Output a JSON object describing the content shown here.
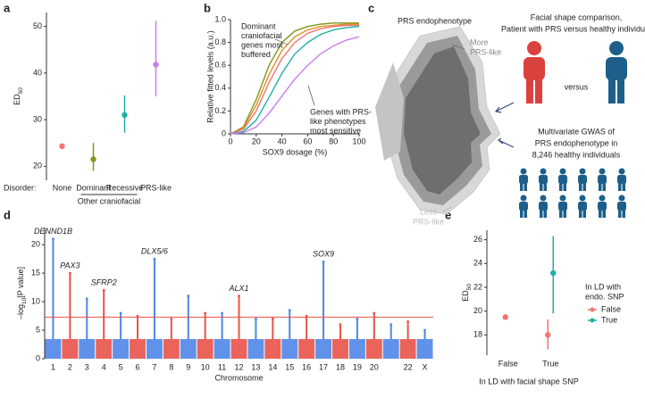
{
  "panel_labels": [
    "a",
    "b",
    "c",
    "d",
    "e"
  ],
  "chart_data": [
    {
      "type": "pointrange",
      "ylabel": "ED",
      "ylabel_subscript": "50",
      "categories": [
        "None",
        "Dominant",
        "Recessive",
        "PRS-like"
      ],
      "values": [
        24.3,
        21.5,
        31,
        41.8
      ],
      "lower": [
        24,
        19,
        27.2,
        35
      ],
      "upper": [
        24.6,
        25,
        35.2,
        51.2
      ],
      "colors": [
        "#f07470",
        "#7d9a1c",
        "#1eb0a6",
        "#c77cf0"
      ],
      "row_label": "Disorder:",
      "group_label": "Other craniofacial",
      "ylim": [
        17,
        53
      ],
      "yticks": [
        20,
        30,
        40,
        50
      ]
    },
    {
      "type": "line",
      "xlabel": "SOX9 dosage (%)",
      "ylabel": "Relative fitted levels (a.u.)",
      "x": [
        0,
        10,
        20,
        30,
        40,
        50,
        60,
        70,
        80,
        90,
        100
      ],
      "series": [
        {
          "color": "#7d9a1c",
          "values": [
            0,
            0.06,
            0.3,
            0.6,
            0.8,
            0.9,
            0.94,
            0.96,
            0.97,
            0.97,
            0.97
          ]
        },
        {
          "color": "#e0902a",
          "values": [
            0,
            0.05,
            0.25,
            0.52,
            0.73,
            0.85,
            0.91,
            0.94,
            0.95,
            0.96,
            0.96
          ]
        },
        {
          "color": "#f07470",
          "values": [
            0,
            0.04,
            0.2,
            0.45,
            0.66,
            0.8,
            0.88,
            0.92,
            0.94,
            0.95,
            0.95
          ]
        },
        {
          "color": "#1eb0a6",
          "values": [
            0,
            0.02,
            0.12,
            0.32,
            0.53,
            0.7,
            0.8,
            0.87,
            0.91,
            0.93,
            0.94
          ]
        },
        {
          "color": "#c77cf0",
          "values": [
            0,
            0.01,
            0.06,
            0.18,
            0.33,
            0.48,
            0.6,
            0.7,
            0.77,
            0.82,
            0.85
          ]
        }
      ],
      "annotations": [
        [
          "Dominant",
          "craniofacial",
          "genes most",
          "buffered"
        ],
        [
          "Genes with PRS-",
          "like phenotypes",
          "most sensitive"
        ]
      ],
      "xlim": [
        0,
        100
      ],
      "xticks": [
        0,
        20,
        40,
        60,
        80,
        100
      ],
      "ylim": [
        0,
        1
      ],
      "yticks": [
        0,
        0.2,
        0.4,
        0.6,
        0.8,
        {
          "value": 1,
          "label": "1.0"
        }
      ]
    },
    {
      "type": "manhattan",
      "xlabel": "Chromosome",
      "ylabel": "–log",
      "ylabel_subscript": "10",
      "ylabel_suffix": "[P value]",
      "categories": [
        "1",
        "2",
        "3",
        "4",
        "5",
        "6",
        "7",
        "8",
        "9",
        "10",
        "11",
        "12",
        "13",
        "14",
        "15",
        "16",
        "17",
        "18",
        "19",
        "20",
        null,
        "22",
        "X"
      ],
      "values": [
        21,
        15,
        10.5,
        12,
        8,
        7.5,
        17.5,
        7,
        11,
        8,
        8,
        11,
        7,
        7,
        8.5,
        7.5,
        17,
        6,
        7,
        8,
        6,
        6.5,
        5
      ],
      "colors": [
        "#4f86e8",
        "#e8534a"
      ],
      "threshold": 7.3,
      "threshold_color": "#e8534a",
      "annotations": [
        {
          "text": "DENND1B",
          "category": 0
        },
        {
          "text": "PAX3",
          "category": 1
        },
        {
          "text": "SFRP2",
          "category": 3
        },
        {
          "text": "DLX5/6",
          "category": 6
        },
        {
          "text": "ALX1",
          "category": 11
        },
        {
          "text": "SOX9",
          "category": 16
        }
      ],
      "ylim": [
        0,
        23
      ],
      "yticks": [
        0,
        5,
        10,
        15,
        20
      ]
    },
    {
      "type": "pointrange",
      "xlabel": "In LD with facial shape SNP",
      "ylabel": "ED",
      "ylabel_subscript": "50",
      "legend_title": [
        "In LD with",
        "endo. SNP"
      ],
      "categories": [
        "False",
        "True"
      ],
      "series": [
        {
          "name": "False",
          "color": "#f07470",
          "values": [
            19.5,
            18
          ],
          "lower": [
            null,
            16.8
          ],
          "upper": [
            null,
            19.3
          ]
        },
        {
          "name": "True",
          "color": "#1eb0a6",
          "values": [
            null,
            23.2
          ],
          "lower": [
            null,
            19.8
          ],
          "upper": [
            null,
            26.3
          ]
        }
      ],
      "ylim": [
        16.3,
        26.8
      ],
      "yticks": [
        18,
        20,
        22,
        24,
        26
      ]
    }
  ],
  "diagram": {
    "face_title": "PRS endophenotype",
    "more": [
      "More",
      "PRS-like"
    ],
    "less": [
      "Less",
      "PRS-like"
    ],
    "comparison": [
      "Facial shape comparison,",
      "Patient with PRS versus healthy individual"
    ],
    "versus": "versus",
    "gwas": [
      "Multivariate GWAS of",
      "PRS endophenotype in",
      "8,246 healthy individuals"
    ]
  }
}
